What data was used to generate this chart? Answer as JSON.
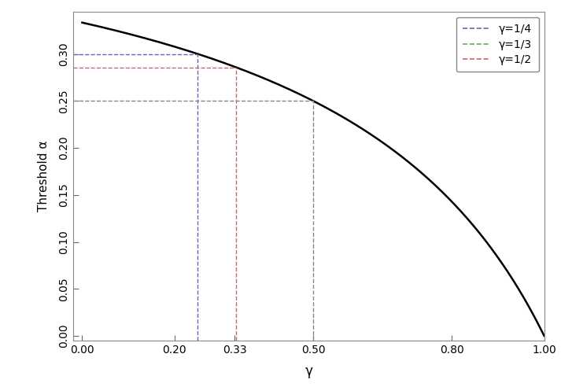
{
  "xlabel": "γ",
  "ylabel": "Threshold α",
  "xlim": [
    -0.02,
    1.0
  ],
  "ylim": [
    -0.005,
    0.345
  ],
  "xticks": [
    0.0,
    0.2,
    0.33,
    0.5,
    0.8,
    1.0
  ],
  "xtick_labels": [
    "0.00",
    "0.20",
    "0.33",
    "0.50",
    "0.80",
    "1.00"
  ],
  "yticks": [
    0.0,
    0.05,
    0.1,
    0.15,
    0.2,
    0.25,
    0.3
  ],
  "ytick_labels": [
    "0.00",
    "0.05",
    "0.10",
    "0.15",
    "0.20",
    "0.25",
    "0.30"
  ],
  "curve_color": "#000000",
  "curve_lw": 1.8,
  "vline_gamma_quarter": 0.25,
  "vline_gamma_third": 0.3333333333,
  "vline_gamma_half": 0.5,
  "col_blue": "#6666bb",
  "col_red": "#cc6666",
  "col_gray": "#888888",
  "dashed_lw": 1.0,
  "legend_labels": [
    "γ=1/4",
    "γ=1/3",
    "γ=1/2"
  ],
  "legend_colors": [
    "#6666bb",
    "#66aa66",
    "#cc6666"
  ],
  "background_color": "#ffffff",
  "figure_bg": "#ffffff"
}
